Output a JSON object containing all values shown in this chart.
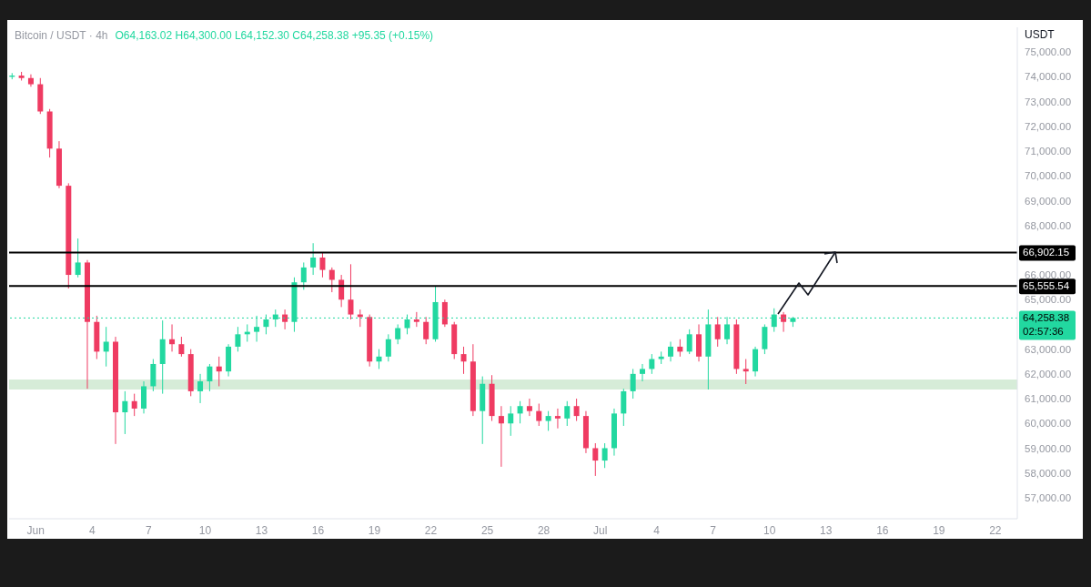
{
  "chart_data": {
    "type": "candlestick",
    "title": "Bitcoin / USDT · 4h",
    "subtitle": "O64,163.02 H64,300.00 L64,152.30 C64,258.38 +95.35 (+0.15%)",
    "ylabel": "USDT",
    "x": [
      "--05-30T18:00",
      "--05-31T06:00",
      "--05-31T18:00",
      "--06-01T06:00",
      "--06-01T18:00",
      "--06-02T06:00",
      "--06-02T18:00",
      "--06-03T06:00",
      "--06-03T18:00",
      "--06-04T06:00",
      "--06-04T18:00",
      "--06-05T06:00",
      "--06-05T18:00",
      "--06-06T06:00",
      "--06-06T18:00",
      "--06-07T06:00",
      "--06-07T18:00",
      "--06-08T06:00",
      "--06-08T18:00",
      "--06-09T06:00",
      "--06-09T18:00",
      "--06-10T06:00",
      "--06-10T18:00",
      "--06-11T06:00",
      "--06-11T18:00",
      "--06-12T06:00",
      "--06-12T18:00",
      "--06-13T06:00",
      "--06-13T18:00",
      "--06-14T06:00",
      "--06-14T18:00",
      "--06-15T06:00",
      "--06-15T18:00",
      "--06-16T06:00",
      "--06-16T18:00",
      "--06-17T06:00",
      "--06-17T18:00",
      "--06-18T06:00",
      "--06-18T18:00",
      "--06-19T06:00",
      "--06-19T18:00",
      "--06-20T06:00",
      "--06-20T18:00",
      "--06-21T06:00",
      "--06-21T18:00",
      "--06-22T06:00",
      "--06-22T18:00",
      "--06-23T06:00",
      "--06-23T18:00",
      "--06-24T06:00",
      "--06-24T18:00",
      "--06-25T06:00",
      "--06-25T18:00",
      "--06-26T06:00",
      "--06-26T18:00",
      "--06-27T06:00",
      "--06-27T18:00",
      "--06-28T06:00",
      "--06-28T18:00",
      "--06-29T06:00",
      "--06-29T18:00",
      "--06-30T06:00",
      "--06-30T18:00",
      "--07-01T06:00",
      "--07-01T18:00",
      "--07-02T06:00",
      "--07-02T18:00",
      "--07-03T06:00",
      "--07-03T18:00",
      "--07-04T06:00",
      "--07-04T18:00",
      "--07-05T06:00",
      "--07-05T18:00",
      "--07-06T06:00",
      "--07-06T18:00",
      "--07-07T06:00",
      "--07-07T18:00",
      "--07-08T06:00",
      "--07-08T18:00",
      "--07-09T06:00",
      "--07-09T18:00",
      "--07-10T06:00",
      "--07-10T18:00",
      "--07-11T06:00"
    ],
    "ohlc": [
      [
        74000,
        74150,
        73900,
        74050
      ],
      [
        74050,
        74200,
        73850,
        73950
      ],
      [
        73950,
        74100,
        73600,
        73700
      ],
      [
        73700,
        73950,
        72500,
        72600
      ],
      [
        72600,
        72700,
        70740,
        71100
      ],
      [
        71100,
        71400,
        69500,
        69600
      ],
      [
        69600,
        69700,
        65450,
        66000
      ],
      [
        66000,
        67470,
        65900,
        66500
      ],
      [
        66500,
        66600,
        61400,
        64100
      ],
      [
        64100,
        64350,
        62600,
        62900
      ],
      [
        62900,
        63900,
        62300,
        63300
      ],
      [
        63300,
        63500,
        59170,
        60450
      ],
      [
        60450,
        61300,
        59570,
        60900
      ],
      [
        60900,
        61200,
        60300,
        60600
      ],
      [
        60600,
        61700,
        60400,
        61500
      ],
      [
        61500,
        62600,
        61300,
        62400
      ],
      [
        62400,
        64160,
        61200,
        63400
      ],
      [
        63400,
        64000,
        62900,
        63200
      ],
      [
        63200,
        63500,
        62700,
        62800
      ],
      [
        62800,
        63000,
        61100,
        61300
      ],
      [
        61300,
        62000,
        60820,
        61700
      ],
      [
        61700,
        62400,
        61300,
        62300
      ],
      [
        62300,
        62700,
        61500,
        62100
      ],
      [
        62100,
        63200,
        61900,
        63100
      ],
      [
        63100,
        63900,
        62900,
        63600
      ],
      [
        63600,
        64000,
        63300,
        63700
      ],
      [
        63700,
        64350,
        63300,
        63900
      ],
      [
        63900,
        64400,
        63600,
        64200
      ],
      [
        64200,
        64600,
        63900,
        64400
      ],
      [
        64400,
        64600,
        63800,
        64100
      ],
      [
        64100,
        65900,
        63700,
        65700
      ],
      [
        65700,
        66500,
        65400,
        66300
      ],
      [
        66300,
        67280,
        66000,
        66700
      ],
      [
        66700,
        66900,
        65900,
        66200
      ],
      [
        66200,
        66300,
        65300,
        65800
      ],
      [
        65800,
        66000,
        64700,
        65000
      ],
      [
        65000,
        66430,
        64200,
        64400
      ],
      [
        64400,
        64600,
        63900,
        64300
      ],
      [
        64300,
        64400,
        62300,
        62500
      ],
      [
        62500,
        63000,
        62200,
        62700
      ],
      [
        62700,
        63600,
        62500,
        63400
      ],
      [
        63400,
        64000,
        63200,
        63850
      ],
      [
        63850,
        64400,
        63600,
        64200
      ],
      [
        64200,
        64500,
        63900,
        64100
      ],
      [
        64100,
        64300,
        63200,
        63400
      ],
      [
        63400,
        65550,
        63300,
        64900
      ],
      [
        64900,
        65000,
        63900,
        64000
      ],
      [
        64000,
        64100,
        62600,
        62800
      ],
      [
        62800,
        63100,
        62000,
        62500
      ],
      [
        62500,
        63200,
        60300,
        60500
      ],
      [
        60500,
        61900,
        59170,
        61600
      ],
      [
        61600,
        61950,
        60100,
        60300
      ],
      [
        60300,
        60700,
        58250,
        60000
      ],
      [
        60000,
        60700,
        59500,
        60400
      ],
      [
        60400,
        60900,
        60000,
        60700
      ],
      [
        60700,
        61000,
        60300,
        60500
      ],
      [
        60500,
        60800,
        59900,
        60100
      ],
      [
        60100,
        60500,
        59700,
        60300
      ],
      [
        60300,
        60600,
        59800,
        60200
      ],
      [
        60200,
        60900,
        59900,
        60700
      ],
      [
        60700,
        61000,
        60100,
        60300
      ],
      [
        60300,
        60500,
        58800,
        59000
      ],
      [
        59000,
        59200,
        57880,
        58500
      ],
      [
        58500,
        59200,
        58200,
        59000
      ],
      [
        59000,
        60600,
        58700,
        60400
      ],
      [
        60400,
        61400,
        59900,
        61300
      ],
      [
        61300,
        62200,
        61000,
        62000
      ],
      [
        62000,
        62400,
        61700,
        62200
      ],
      [
        62200,
        62800,
        62000,
        62600
      ],
      [
        62600,
        62900,
        62400,
        62700
      ],
      [
        62700,
        63300,
        62500,
        63100
      ],
      [
        63100,
        63400,
        62700,
        62900
      ],
      [
        62900,
        63800,
        62800,
        63600
      ],
      [
        63600,
        64000,
        62500,
        62700
      ],
      [
        62700,
        64600,
        61370,
        64000
      ],
      [
        64000,
        64300,
        63100,
        63400
      ],
      [
        63400,
        64300,
        63200,
        64000
      ],
      [
        64000,
        64200,
        62000,
        62200
      ],
      [
        62200,
        62600,
        61590,
        62100
      ],
      [
        62100,
        63100,
        61900,
        63000
      ],
      [
        63000,
        64000,
        62800,
        63900
      ],
      [
        63900,
        64650,
        63700,
        64400
      ],
      [
        64400,
        64500,
        63700,
        64100
      ],
      [
        64100,
        64300,
        63900,
        64258.38
      ]
    ],
    "colors": [
      "#22d8a0",
      "#ef3b62",
      "#ef3b62",
      "#ef3b62",
      "#ef3b62",
      "#ef3b62",
      "#ef3b62",
      "#22d8a0",
      "#ef3b62",
      "#ef3b62",
      "#22d8a0",
      "#ef3b62",
      "#22d8a0",
      "#ef3b62",
      "#22d8a0",
      "#22d8a0",
      "#22d8a0",
      "#ef3b62",
      "#ef3b62",
      "#ef3b62",
      "#22d8a0",
      "#22d8a0",
      "#ef3b62",
      "#22d8a0",
      "#22d8a0",
      "#22d8a0",
      "#22d8a0",
      "#22d8a0",
      "#22d8a0",
      "#ef3b62",
      "#22d8a0",
      "#22d8a0",
      "#22d8a0",
      "#ef3b62",
      "#ef3b62",
      "#ef3b62",
      "#ef3b62",
      "#ef3b62",
      "#ef3b62",
      "#22d8a0",
      "#22d8a0",
      "#22d8a0",
      "#22d8a0",
      "#ef3b62",
      "#ef3b62",
      "#22d8a0",
      "#ef3b62",
      "#ef3b62",
      "#ef3b62",
      "#ef3b62",
      "#22d8a0",
      "#ef3b62",
      "#ef3b62",
      "#22d8a0",
      "#22d8a0",
      "#ef3b62",
      "#ef3b62",
      "#22d8a0",
      "#ef3b62",
      "#22d8a0",
      "#ef3b62",
      "#ef3b62",
      "#ef3b62",
      "#22d8a0",
      "#22d8a0",
      "#22d8a0",
      "#22d8a0",
      "#22d8a0",
      "#22d8a0",
      "#22d8a0",
      "#22d8a0",
      "#ef3b62",
      "#22d8a0",
      "#ef3b62",
      "#22d8a0",
      "#ef3b62",
      "#22d8a0",
      "#ef3b62",
      "#ef3b62",
      "#22d8a0",
      "#22d8a0",
      "#22d8a0",
      "#ef3b62",
      "#22d8a0"
    ],
    "xlim": [
      "--05-30T14:00",
      "--07-23T04:00"
    ],
    "xticks": [
      {
        "value": "--06-01",
        "label": "Jun"
      },
      {
        "value": "--06-04",
        "label": "4"
      },
      {
        "value": "--06-07",
        "label": "7"
      },
      {
        "value": "--06-10",
        "label": "10"
      },
      {
        "value": "--06-13",
        "label": "13"
      },
      {
        "value": "--06-16",
        "label": "16"
      },
      {
        "value": "--06-19",
        "label": "19"
      },
      {
        "value": "--06-22",
        "label": "22"
      },
      {
        "value": "--06-25",
        "label": "25"
      },
      {
        "value": "--06-28",
        "label": "28"
      },
      {
        "value": "--07-01",
        "label": "Jul"
      },
      {
        "value": "--07-04",
        "label": "4"
      },
      {
        "value": "--07-07",
        "label": "7"
      },
      {
        "value": "--07-10",
        "label": "10"
      },
      {
        "value": "--07-13",
        "label": "13"
      },
      {
        "value": "--07-16",
        "label": "16"
      },
      {
        "value": "--07-19",
        "label": "19"
      },
      {
        "value": "--07-22",
        "label": "22"
      }
    ],
    "ylim": [
      56150,
      76000
    ],
    "yticks": [
      {
        "value": 57000,
        "label": "57,000.00"
      },
      {
        "value": 58000,
        "label": "58,000.00"
      },
      {
        "value": 59000,
        "label": "59,000.00"
      },
      {
        "value": 60000,
        "label": "60,000.00"
      },
      {
        "value": 61000,
        "label": "61,000.00"
      },
      {
        "value": 62000,
        "label": "62,000.00"
      },
      {
        "value": 63000,
        "label": "63,000.00"
      },
      {
        "value": 65000,
        "label": "65,000.00"
      },
      {
        "value": 66000,
        "label": "66,000.00"
      },
      {
        "value": 68000,
        "label": "68,000.00"
      },
      {
        "value": 69000,
        "label": "69,000.00"
      },
      {
        "value": 70000,
        "label": "70,000.00"
      },
      {
        "value": 71000,
        "label": "71,000.00"
      },
      {
        "value": 72000,
        "label": "72,000.00"
      },
      {
        "value": 73000,
        "label": "73,000.00"
      },
      {
        "value": 74000,
        "label": "74,000.00"
      },
      {
        "value": 75000,
        "label": "75,000.00"
      }
    ],
    "ref_lines": [
      {
        "axis": "y",
        "value": 66902.15,
        "label": "66,902.15",
        "color": "#000000"
      },
      {
        "axis": "y",
        "value": 65555.54,
        "label": "65,555.54",
        "color": "#000000"
      },
      {
        "axis": "y",
        "value": 64258.38,
        "label": "64,258.38\n02:57:36",
        "color": "#22d8a0",
        "line_style": "dotted"
      }
    ],
    "bands": [
      {
        "axis": "y",
        "from": 61370,
        "to": 61770,
        "color": "#d6ecd8"
      }
    ]
  }
}
